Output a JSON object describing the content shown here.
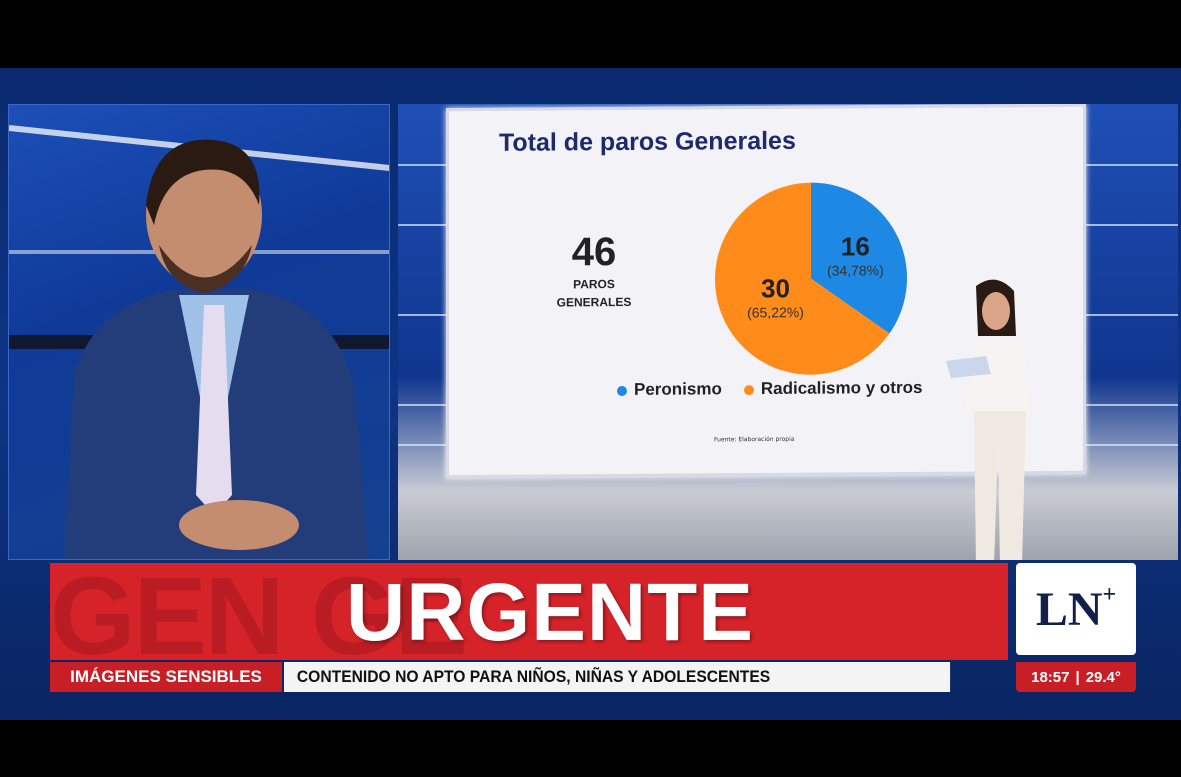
{
  "chart_data": {
    "type": "pie",
    "title": "Total de paros Generales",
    "total": {
      "value": "46",
      "label_line1": "PAROS",
      "label_line2": "GENERALES"
    },
    "slices": [
      {
        "name": "Peronismo",
        "value": 16,
        "label": "16",
        "percent_label": "(34,78%)",
        "color": "#1e88e5"
      },
      {
        "name": "Radicalismo y otros",
        "value": 30,
        "label": "30",
        "percent_label": "(65,22%)",
        "color": "#ff8c1a"
      }
    ],
    "legend_position": "bottom",
    "source": "Fuente: Elaboración propia"
  },
  "lower_third": {
    "background_text": "GEN                    GE",
    "headline": "URGENTE",
    "label": "IMÁGENES SENSIBLES",
    "ticker": "CONTENIDO NO APTO PARA NIÑOS, NIÑAS Y ADOLESCENTES",
    "time": "18:57",
    "temperature": "29.4°"
  },
  "logo": {
    "text": "LN",
    "plus": "+"
  },
  "colors": {
    "red": "#d6232a",
    "blue": "#0d3585"
  }
}
